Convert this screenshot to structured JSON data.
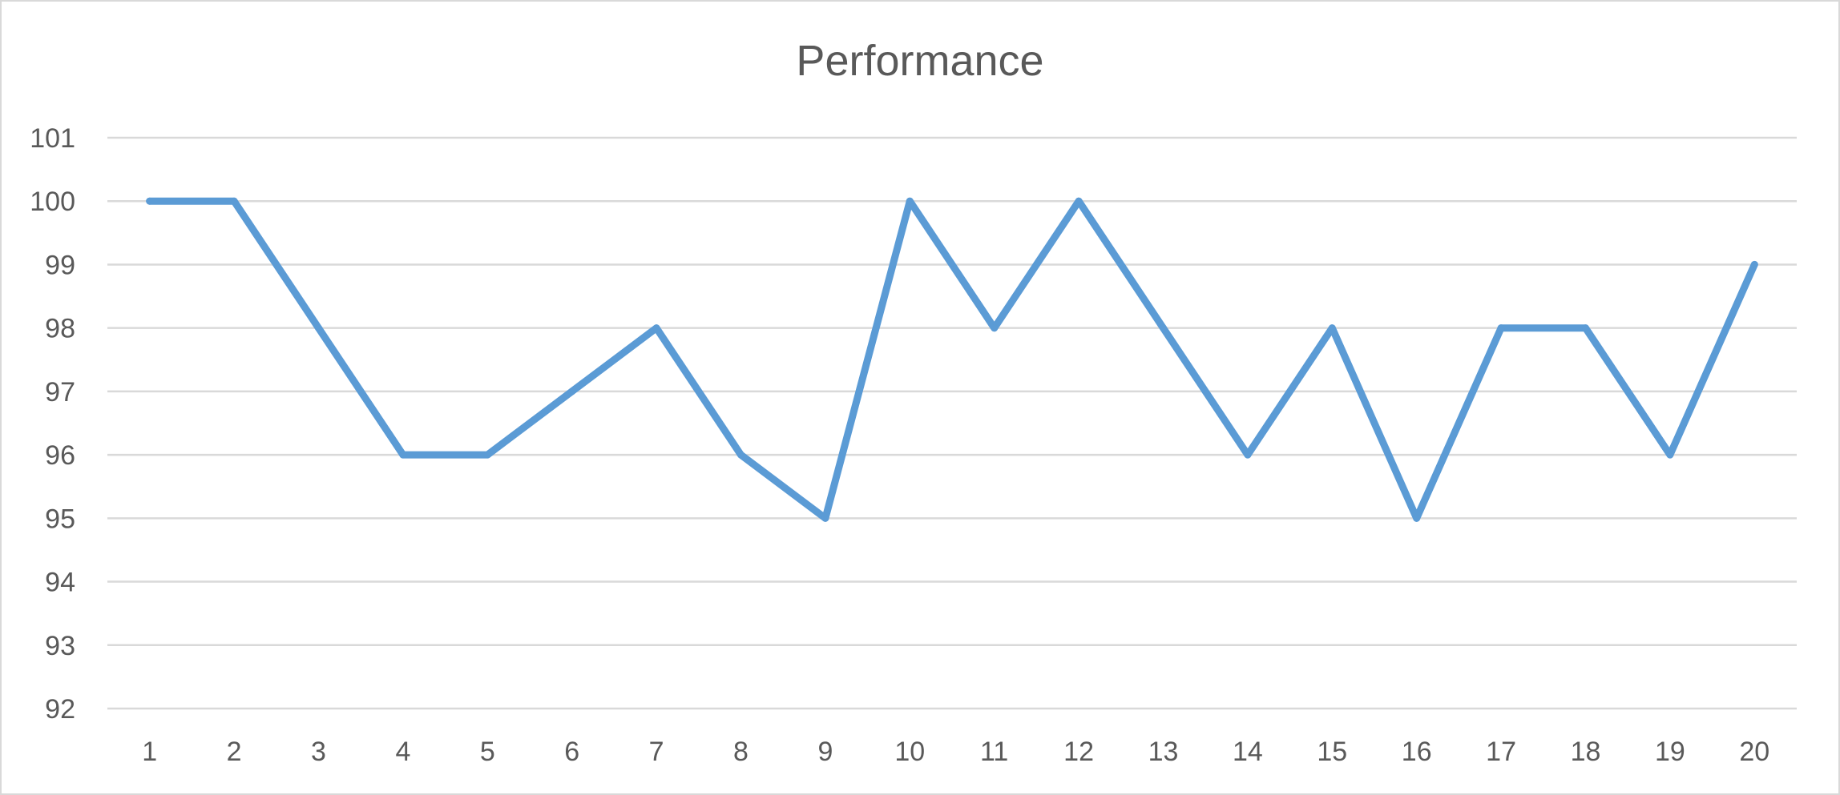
{
  "chart_data": {
    "type": "line",
    "title": "Performance",
    "xlabel": "",
    "ylabel": "",
    "categories": [
      "1",
      "2",
      "3",
      "4",
      "5",
      "6",
      "7",
      "8",
      "9",
      "10",
      "11",
      "12",
      "13",
      "14",
      "15",
      "16",
      "17",
      "18",
      "19",
      "20"
    ],
    "series": [
      {
        "values": [
          100,
          100,
          98,
          96,
          96,
          97,
          98,
          96,
          95,
          100,
          98,
          100,
          98,
          96,
          98,
          95,
          98,
          98,
          96,
          99
        ],
        "color": "#5b9bd5"
      }
    ],
    "ylim": [
      92,
      101
    ],
    "yticks": [
      "92",
      "93",
      "94",
      "95",
      "96",
      "97",
      "98",
      "99",
      "100",
      "101"
    ],
    "grid": true,
    "legend": "none",
    "gridline_color": "#d9d9d9",
    "text_color": "#595959"
  }
}
